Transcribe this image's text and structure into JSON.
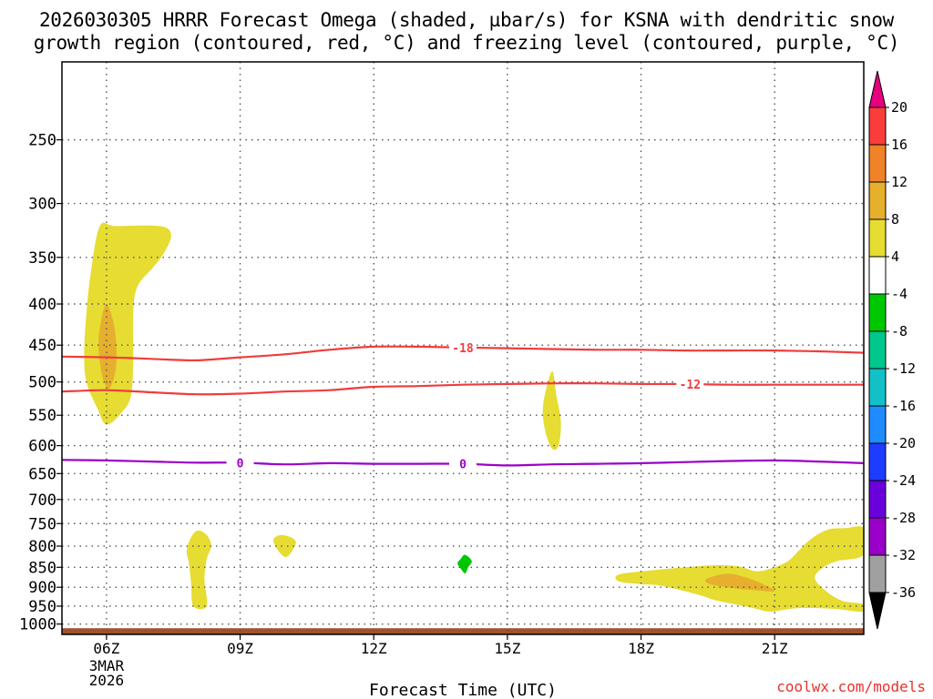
{
  "title_line1": "2026030305 HRRR Forecast Omega (shaded, µbar/s) for KSNA with dendritic snow",
  "title_line2": "growth region (contoured, red, °C) and freezing level (contoured, purple, °C)",
  "credit": "coolwx.com/models",
  "chart_data": {
    "type": "contour",
    "xlabel": "Forecast Time (UTC)",
    "x_ticks": [
      {
        "hour": 6,
        "label": "06Z",
        "date_label": [
          "3MAR",
          "2026"
        ]
      },
      {
        "hour": 9,
        "label": "09Z"
      },
      {
        "hour": 12,
        "label": "12Z"
      },
      {
        "hour": 15,
        "label": "15Z"
      },
      {
        "hour": 18,
        "label": "18Z"
      },
      {
        "hour": 21,
        "label": "21Z"
      }
    ],
    "xlim": [
      5,
      23
    ],
    "ylabel": "",
    "y_scale": "log-pressure",
    "y_ticks": [
      250,
      300,
      350,
      400,
      450,
      500,
      550,
      600,
      650,
      700,
      750,
      800,
      850,
      900,
      950,
      1000
    ],
    "ylim": [
      1030,
      200
    ],
    "grid": true,
    "colorbar": {
      "levels": [
        -36,
        -32,
        -28,
        -24,
        -20,
        -16,
        -12,
        -8,
        -4,
        4,
        8,
        12,
        16,
        20
      ],
      "colors": [
        "#000000",
        "#a0a0a0",
        "#9a00c8",
        "#6a00dc",
        "#1e3cff",
        "#1e8cff",
        "#14c0c8",
        "#00c88c",
        "#00c800",
        "#ffffff",
        "#e6dc32",
        "#e6af2d",
        "#f08228",
        "#fa3c3c",
        "#e6007d"
      ]
    },
    "red_contours": [
      {
        "label": "-18",
        "label_hour": 14.0,
        "points": [
          [
            5,
            465
          ],
          [
            6,
            466
          ],
          [
            7,
            468
          ],
          [
            8,
            470
          ],
          [
            9,
            466
          ],
          [
            10,
            462
          ],
          [
            11,
            456
          ],
          [
            12,
            452
          ],
          [
            13,
            452
          ],
          [
            14,
            453
          ],
          [
            15,
            454
          ],
          [
            16,
            455
          ],
          [
            17,
            456
          ],
          [
            18,
            456
          ],
          [
            19,
            457
          ],
          [
            20,
            457
          ],
          [
            21,
            457
          ],
          [
            22,
            458
          ],
          [
            23,
            460
          ]
        ]
      },
      {
        "label": "-12",
        "label_hour": 19.1,
        "points": [
          [
            5,
            514
          ],
          [
            6,
            512
          ],
          [
            7,
            515
          ],
          [
            8,
            518
          ],
          [
            9,
            517
          ],
          [
            10,
            514
          ],
          [
            11,
            512
          ],
          [
            12,
            507
          ],
          [
            13,
            506
          ],
          [
            14,
            504
          ],
          [
            15,
            503
          ],
          [
            16,
            502
          ],
          [
            17,
            502
          ],
          [
            18,
            503
          ],
          [
            19,
            503
          ],
          [
            20,
            504
          ],
          [
            21,
            504
          ],
          [
            22,
            504
          ],
          [
            23,
            504
          ]
        ]
      }
    ],
    "purple_contours": [
      {
        "labels": [
          "0",
          "0"
        ],
        "label_hours": [
          9.0,
          14.0
        ],
        "points": [
          [
            5,
            625
          ],
          [
            6,
            626
          ],
          [
            7,
            628
          ],
          [
            8,
            630
          ],
          [
            9,
            630
          ],
          [
            10,
            633
          ],
          [
            11,
            631
          ],
          [
            12,
            632
          ],
          [
            13,
            632
          ],
          [
            14,
            632
          ],
          [
            15,
            635
          ],
          [
            16,
            633
          ],
          [
            17,
            632
          ],
          [
            18,
            631
          ],
          [
            19,
            629
          ],
          [
            20,
            627
          ],
          [
            21,
            626
          ],
          [
            22,
            628
          ],
          [
            23,
            631
          ]
        ]
      }
    ],
    "omega_regions": [
      {
        "min": 4,
        "color": "#e6dc32",
        "points": [
          [
            5.85,
            320
          ],
          [
            6.2,
            320
          ],
          [
            7.2,
            320
          ],
          [
            7.45,
            328
          ],
          [
            7.3,
            345
          ],
          [
            7.05,
            360
          ],
          [
            6.7,
            380
          ],
          [
            6.6,
            410
          ],
          [
            6.6,
            470
          ],
          [
            6.55,
            520
          ],
          [
            6.35,
            545
          ],
          [
            6.0,
            565
          ],
          [
            5.8,
            540
          ],
          [
            5.55,
            500
          ],
          [
            5.5,
            460
          ],
          [
            5.55,
            410
          ],
          [
            5.65,
            365
          ]
        ]
      },
      {
        "min": 8,
        "color": "#e6af2d",
        "points": [
          [
            6.0,
            400
          ],
          [
            6.15,
            420
          ],
          [
            6.22,
            450
          ],
          [
            6.2,
            485
          ],
          [
            6.05,
            510
          ],
          [
            5.9,
            490
          ],
          [
            5.82,
            450
          ],
          [
            5.88,
            420
          ]
        ]
      },
      {
        "min": 4,
        "color": "#e6dc32",
        "points": [
          [
            16.0,
            485
          ],
          [
            16.1,
            520
          ],
          [
            16.2,
            560
          ],
          [
            16.15,
            600
          ],
          [
            16.0,
            605
          ],
          [
            15.85,
            575
          ],
          [
            15.8,
            535
          ]
        ]
      },
      {
        "min": 4,
        "color": "#e6dc32",
        "points": [
          [
            7.9,
            780
          ],
          [
            8.05,
            765
          ],
          [
            8.25,
            775
          ],
          [
            8.35,
            800
          ],
          [
            8.25,
            830
          ],
          [
            8.2,
            880
          ],
          [
            8.25,
            950
          ],
          [
            7.95,
            950
          ],
          [
            7.9,
            890
          ],
          [
            7.85,
            840
          ],
          [
            7.8,
            810
          ]
        ]
      },
      {
        "min": 4,
        "color": "#e6dc32",
        "points": [
          [
            9.75,
            785
          ],
          [
            9.95,
            775
          ],
          [
            10.25,
            790
          ],
          [
            10.05,
            825
          ],
          [
            9.85,
            810
          ]
        ]
      },
      {
        "min": 4,
        "color": "#e6dc32",
        "points": [
          [
            17.5,
            868
          ],
          [
            18.2,
            858
          ],
          [
            19.0,
            850
          ],
          [
            19.7,
            845
          ],
          [
            20.2,
            848
          ],
          [
            20.6,
            860
          ],
          [
            21.0,
            850
          ],
          [
            21.3,
            835
          ],
          [
            21.5,
            815
          ],
          [
            21.8,
            785
          ],
          [
            22.2,
            763
          ],
          [
            22.6,
            760
          ],
          [
            23.0,
            760
          ],
          [
            23.0,
            820
          ],
          [
            22.4,
            835
          ],
          [
            22.1,
            850
          ],
          [
            21.9,
            875
          ],
          [
            22.1,
            905
          ],
          [
            22.5,
            935
          ],
          [
            23.0,
            945
          ],
          [
            23.0,
            965
          ],
          [
            22.4,
            958
          ],
          [
            21.7,
            955
          ],
          [
            21.3,
            958
          ],
          [
            20.9,
            965
          ],
          [
            20.5,
            955
          ],
          [
            20.1,
            945
          ],
          [
            19.7,
            935
          ],
          [
            19.3,
            920
          ],
          [
            18.8,
            905
          ],
          [
            18.4,
            895
          ],
          [
            18.0,
            892
          ],
          [
            17.5,
            885
          ]
        ]
      },
      {
        "min": 8,
        "color": "#e6af2d",
        "points": [
          [
            19.45,
            880
          ],
          [
            19.7,
            870
          ],
          [
            20.0,
            866
          ],
          [
            20.35,
            875
          ],
          [
            20.7,
            890
          ],
          [
            21.0,
            910
          ],
          [
            20.6,
            908
          ],
          [
            20.1,
            903
          ],
          [
            19.7,
            896
          ],
          [
            19.5,
            890
          ]
        ]
      },
      {
        "max": -4,
        "color": "#00c800",
        "points": [
          [
            13.95,
            830
          ],
          [
            14.05,
            820
          ],
          [
            14.2,
            835
          ],
          [
            14.12,
            850
          ],
          [
            14.05,
            865
          ],
          [
            13.93,
            850
          ],
          [
            13.88,
            840
          ]
        ]
      }
    ],
    "terrain": {
      "color": "#a0522d",
      "surface_pressure": 1012
    }
  }
}
